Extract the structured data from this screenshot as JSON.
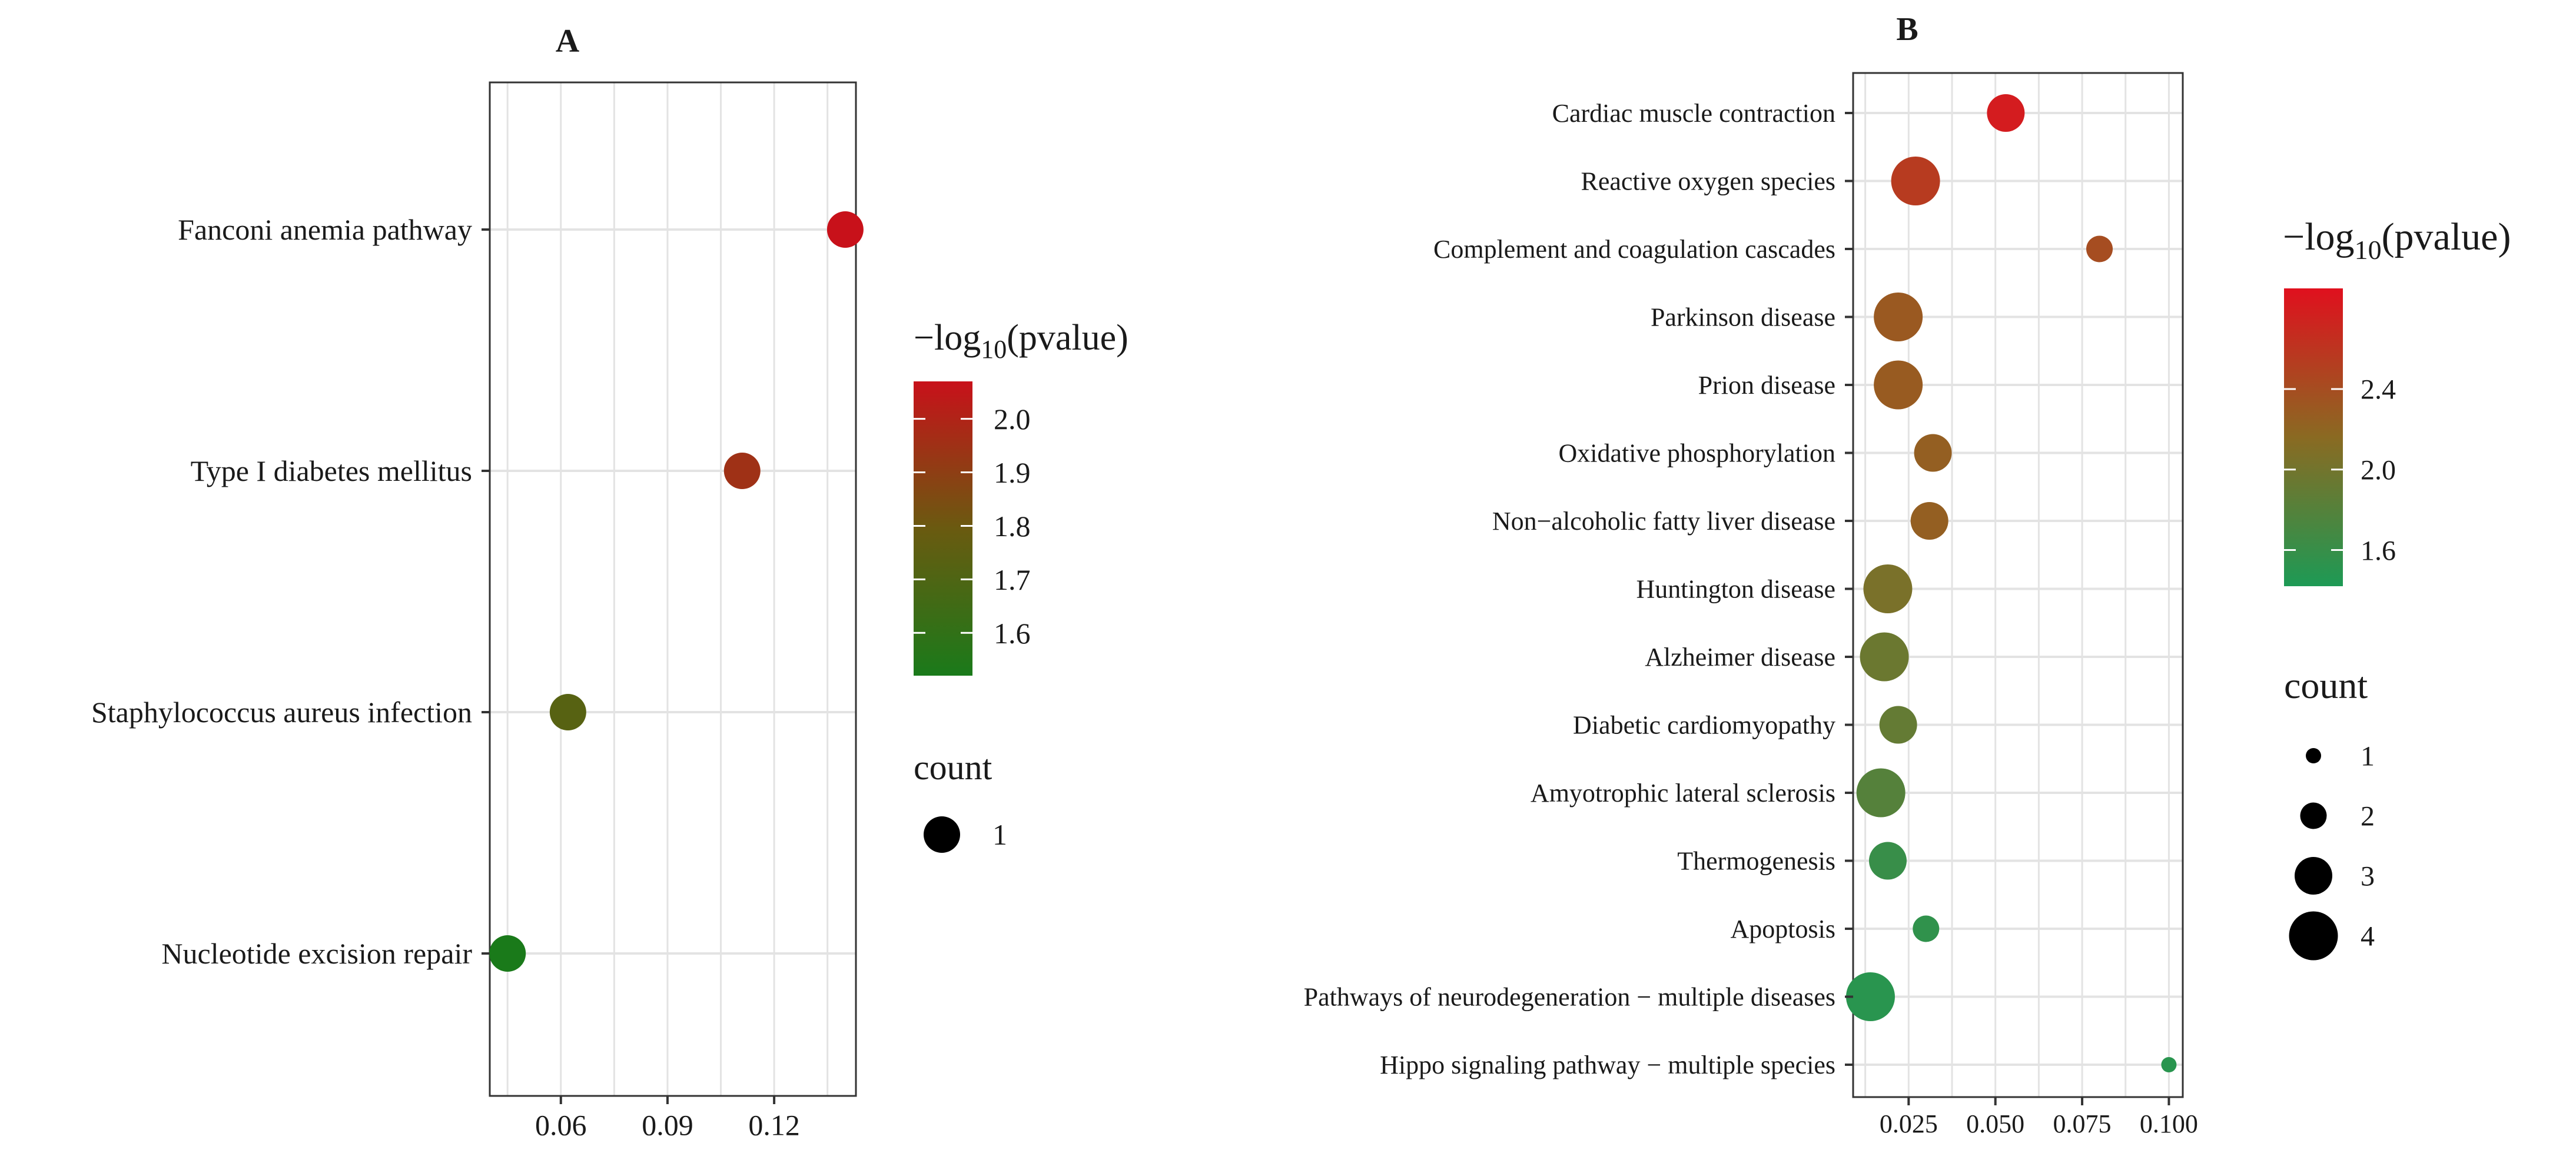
{
  "chart_data": [
    {
      "panel": "A",
      "type": "scatter",
      "title": "A",
      "xlabel": "",
      "ylabel": "",
      "xlim": [
        0.04,
        0.143
      ],
      "x_ticks": [
        "0.06",
        "0.09",
        "0.12"
      ],
      "x_tick_values": [
        0.06,
        0.09,
        0.12
      ],
      "grid": true,
      "categories": [
        "Fanconi anemia pathway",
        "Type I diabetes mellitus",
        "Staphylococcus aureus infection",
        "Nucleotide excision repair"
      ],
      "x": [
        0.14,
        0.111,
        0.062,
        0.045
      ],
      "count": [
        1,
        1,
        1,
        1
      ],
      "neglog10_pvalue": [
        2.07,
        1.95,
        1.73,
        1.52
      ],
      "legend_color": {
        "title_prefix": "−log",
        "title_sub": "10",
        "title_suffix": "(pvalue)",
        "ticks": [
          "2.0",
          "1.9",
          "1.8",
          "1.7",
          "1.6"
        ],
        "tick_values": [
          2.0,
          1.9,
          1.8,
          1.7,
          1.6
        ],
        "range": [
          1.52,
          2.07
        ],
        "low_color": "#1a7a1a",
        "mid_color": "#6a5a10",
        "high_color": "#c8111a"
      },
      "legend_size": {
        "title": "count",
        "labels": [
          "1"
        ],
        "values": [
          1
        ]
      }
    },
    {
      "panel": "B",
      "type": "scatter",
      "title": "B",
      "xlabel": "",
      "ylabel": "",
      "xlim": [
        0.009,
        0.104
      ],
      "x_ticks": [
        "0.025",
        "0.050",
        "0.075",
        "0.100"
      ],
      "x_tick_values": [
        0.025,
        0.05,
        0.075,
        0.1
      ],
      "grid": true,
      "categories": [
        "Cardiac muscle contraction",
        "Reactive oxygen species",
        "Complement and coagulation cascades",
        "Parkinson disease",
        "Prion disease",
        "Oxidative phosphorylation",
        "Non−alcoholic fatty liver disease",
        "Huntington disease",
        "Alzheimer disease",
        "Diabetic cardiomyopathy",
        "Amyotrophic lateral sclerosis",
        "Thermogenesis",
        "Apoptosis",
        "Pathways of neurodegeneration − multiple diseases",
        "Hippo signaling pathway − multiple species"
      ],
      "x": [
        0.053,
        0.027,
        0.08,
        0.022,
        0.022,
        0.032,
        0.031,
        0.019,
        0.018,
        0.022,
        0.017,
        0.019,
        0.03,
        0.014,
        0.1
      ],
      "count": [
        3,
        4,
        2,
        4,
        4,
        3,
        3,
        4,
        4,
        3,
        4,
        3,
        2,
        4,
        1
      ],
      "neglog10_pvalue": [
        2.8,
        2.55,
        2.4,
        2.3,
        2.28,
        2.25,
        2.25,
        2.05,
        1.95,
        1.9,
        1.8,
        1.6,
        1.55,
        1.5,
        1.5
      ],
      "legend_color": {
        "title_prefix": "−log",
        "title_sub": "10",
        "title_suffix": "(pvalue)",
        "ticks": [
          "2.4",
          "2.0",
          "1.6"
        ],
        "tick_values": [
          2.4,
          2.0,
          1.6
        ],
        "range": [
          1.42,
          2.9
        ],
        "low_color": "#1d9a55",
        "mid_color": "#8a6a22",
        "high_color": "#e0101e"
      },
      "legend_size": {
        "title": "count",
        "labels": [
          "1",
          "2",
          "3",
          "4"
        ],
        "values": [
          1,
          2,
          3,
          4
        ]
      }
    }
  ]
}
